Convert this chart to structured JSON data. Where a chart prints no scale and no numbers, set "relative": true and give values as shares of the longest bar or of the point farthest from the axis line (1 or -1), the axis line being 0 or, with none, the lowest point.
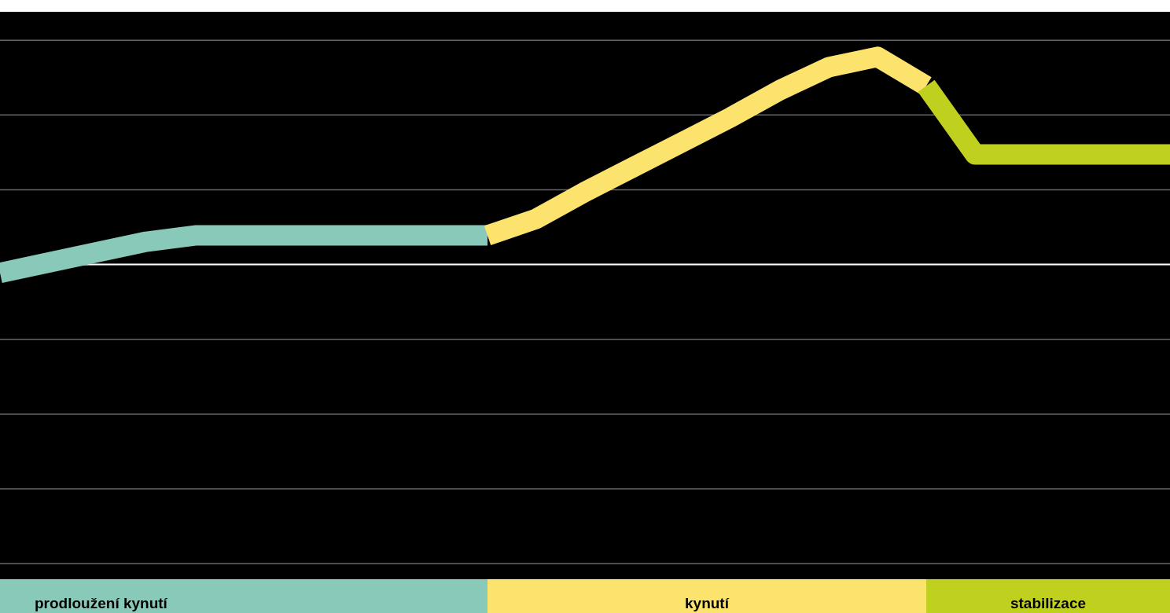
{
  "chart_data": {
    "type": "line",
    "relative": true,
    "grid": "y",
    "categories": [
      null,
      null,
      null,
      null,
      null,
      null,
      null,
      null,
      null,
      null,
      null,
      null,
      null,
      null,
      null,
      null,
      null,
      null,
      null,
      null,
      null,
      null,
      null,
      null,
      null
    ],
    "series": [
      {
        "color": "#88c9b9",
        "values": [
          -0.04,
          0.01,
          0.06,
          0.11,
          0.14,
          0.14,
          0.14,
          0.14,
          0.14,
          0.14,
          0.14,
          null,
          null,
          null,
          null,
          null,
          null,
          null,
          null,
          null,
          null,
          null,
          null,
          null,
          null
        ]
      },
      {
        "color": "#fce36e",
        "values": [
          null,
          null,
          null,
          null,
          null,
          null,
          null,
          null,
          null,
          null,
          0.14,
          0.22,
          0.35,
          0.47,
          0.59,
          0.71,
          0.84,
          0.95,
          1,
          0.86,
          null,
          null,
          null,
          null,
          null
        ]
      },
      {
        "color": "#c0d01e",
        "values": [
          null,
          null,
          null,
          null,
          null,
          null,
          null,
          null,
          null,
          null,
          null,
          null,
          null,
          null,
          null,
          null,
          null,
          null,
          null,
          0.86,
          0.53,
          0.53,
          0.53,
          0.53,
          0.53
        ]
      }
    ],
    "ref_lines": [
      {
        "axis": "y",
        "value": 0,
        "color": "#ffffff"
      }
    ],
    "annotations": [
      "prodloužení kynutí",
      "kynutí",
      "stabilizace"
    ]
  }
}
